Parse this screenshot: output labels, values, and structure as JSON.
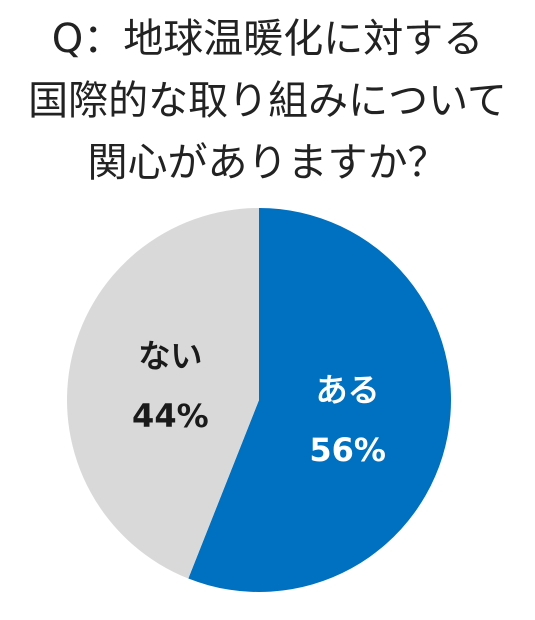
{
  "title_lines": [
    "Q：地球温暖化に対する",
    "国際的な取り組みについて",
    "関心がありますか？"
  ],
  "chart_data": {
    "type": "pie",
    "title": "Q：地球温暖化に対する国際的な取り組みについて関心がありますか？",
    "slices": [
      {
        "label": "ある",
        "value": 56,
        "value_label": "56%",
        "color": "#0070C0",
        "text_color": "#ffffff"
      },
      {
        "label": "ない",
        "value": 44,
        "value_label": "44%",
        "color": "#D9D9D9",
        "text_color": "#1a1a1a"
      }
    ],
    "start": "12 o'clock",
    "direction": "clockwise"
  }
}
